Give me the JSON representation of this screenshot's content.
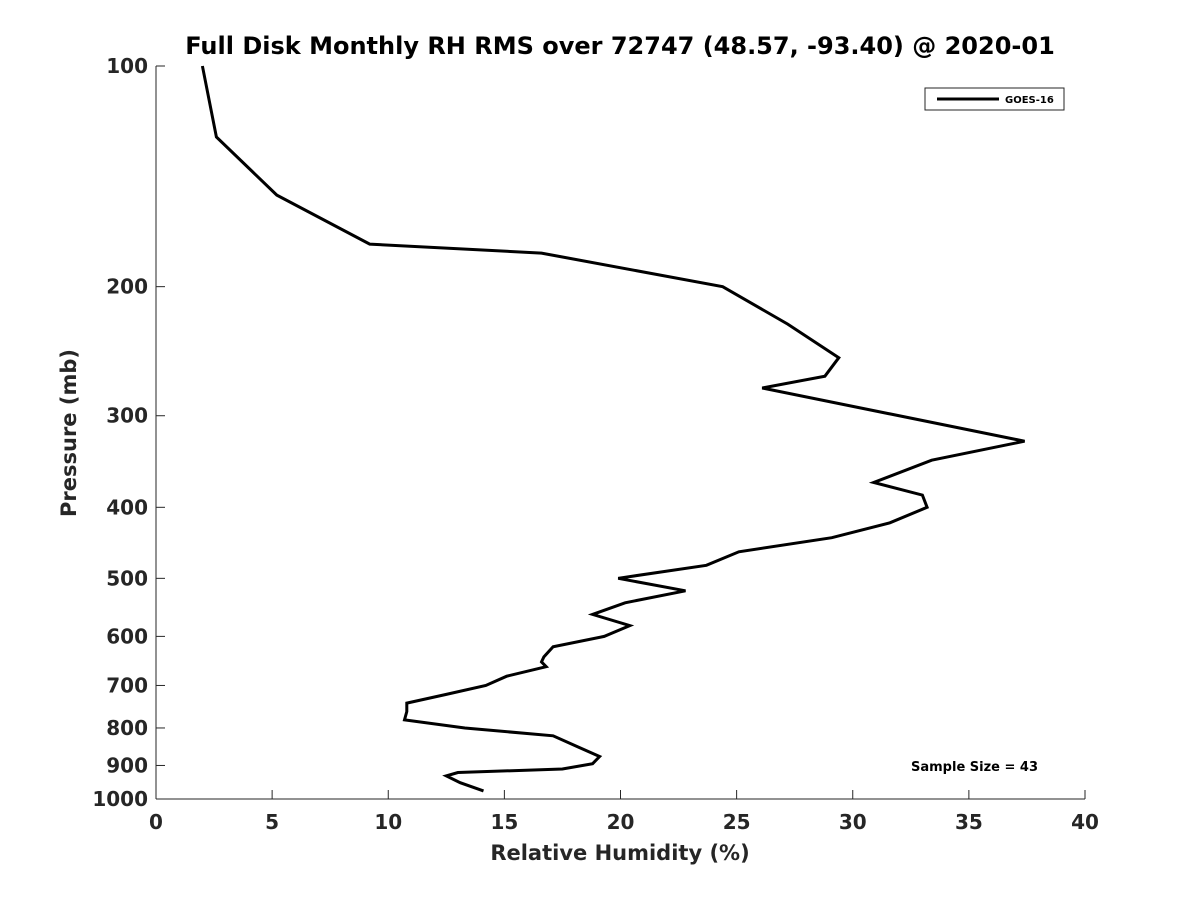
{
  "chart_data": {
    "type": "line",
    "title": "Full Disk Monthly RH RMS over 72747 (48.57, -93.40) @ 2020-01",
    "xlabel": "Relative Humidity (%)",
    "ylabel": "Pressure (mb)",
    "xlim": [
      0,
      40
    ],
    "ylim": [
      100,
      1000
    ],
    "yscale": "log",
    "y_reversed": true,
    "x_ticks": [
      "0",
      "5",
      "10",
      "15",
      "20",
      "25",
      "30",
      "35",
      "40"
    ],
    "y_ticks": [
      "100",
      "200",
      "300",
      "400",
      "500",
      "600",
      "700",
      "800",
      "900",
      "1000"
    ],
    "legend_location": "top-right",
    "annotation": "Sample Size = 43",
    "series": [
      {
        "name": "GOES-16",
        "color": "#000000",
        "x": [
          2.0,
          2.6,
          5.2,
          9.2,
          16.6,
          24.4,
          27.2,
          29.4,
          28.8,
          26.1,
          37.4,
          33.4,
          30.9,
          33.0,
          33.2,
          31.6,
          29.1,
          25.1,
          23.7,
          19.9,
          22.8,
          20.2,
          18.8,
          20.4,
          19.3,
          17.1,
          16.7,
          16.6,
          16.8,
          15.1,
          14.2,
          12.5,
          10.8,
          10.8,
          10.7,
          13.3,
          17.1,
          18.2,
          19.1,
          18.8,
          17.5,
          13.0,
          12.5,
          13.1,
          14.1
        ],
        "y": [
          100,
          125,
          150,
          175,
          180,
          200,
          225,
          250,
          265,
          275,
          325,
          345,
          370,
          385,
          400,
          420,
          440,
          460,
          480,
          500,
          520,
          540,
          560,
          580,
          600,
          620,
          640,
          650,
          660,
          680,
          700,
          720,
          740,
          760,
          780,
          800,
          820,
          850,
          875,
          895,
          910,
          920,
          930,
          950,
          975
        ]
      }
    ]
  }
}
